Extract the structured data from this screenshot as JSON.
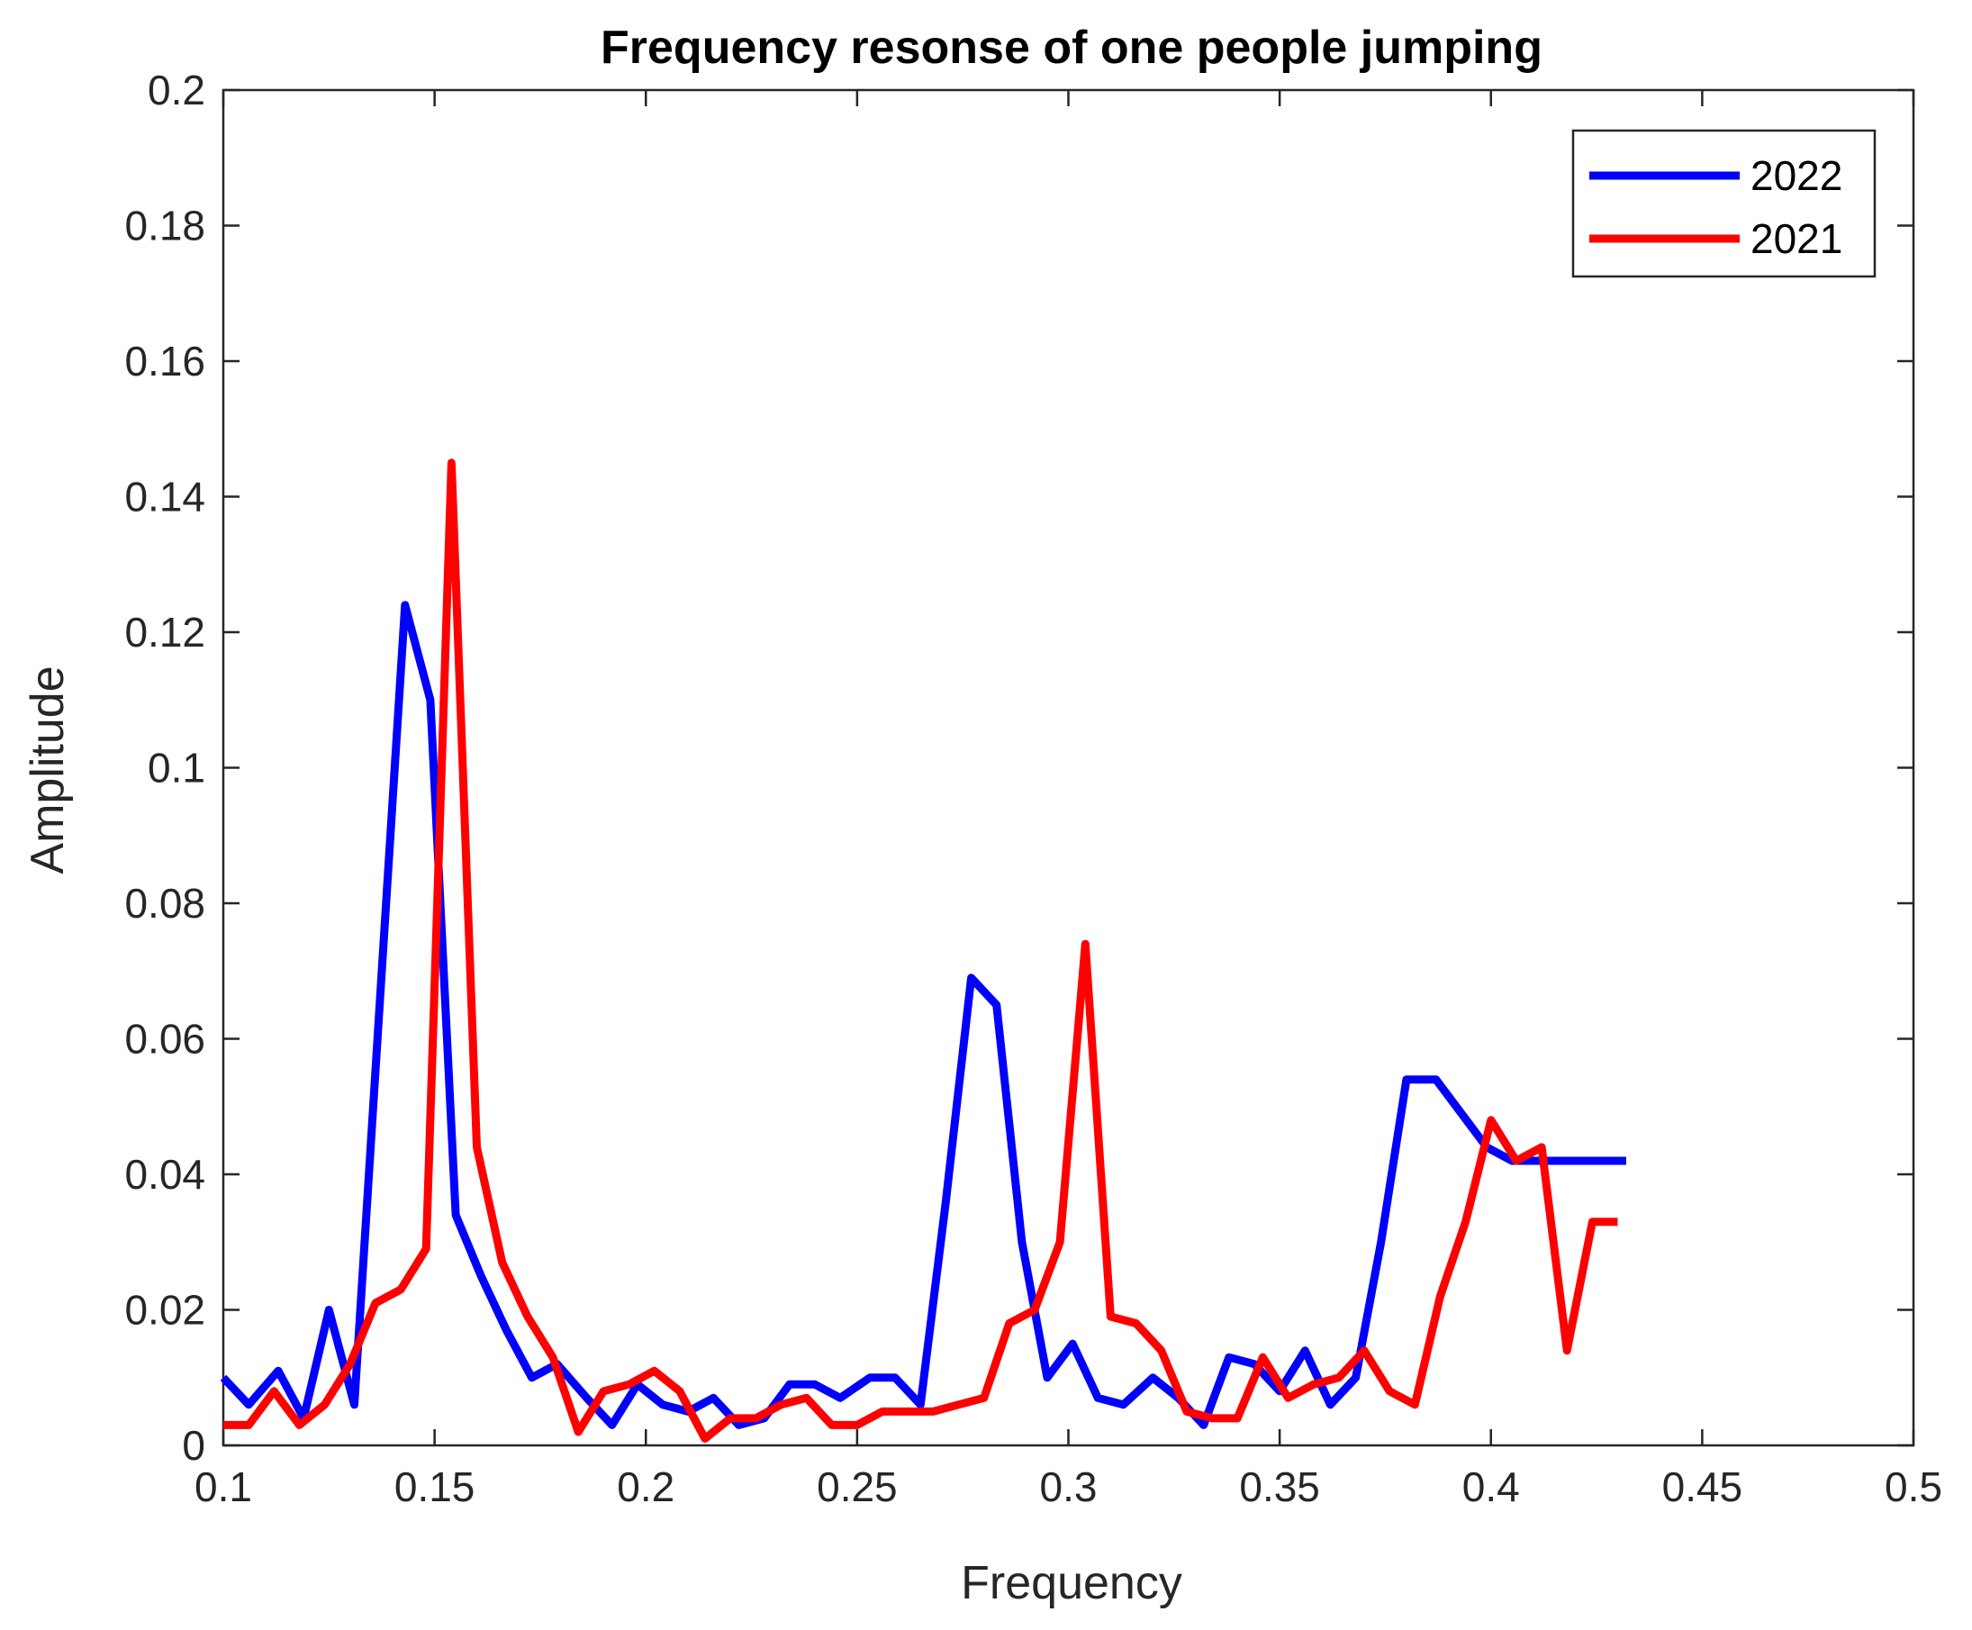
{
  "chart_data": {
    "type": "line",
    "title": "Frequency resonse of one people jumping",
    "xlabel": "Frequency",
    "ylabel": "Amplitude",
    "xlim": [
      0.1,
      0.5
    ],
    "ylim": [
      0,
      0.2
    ],
    "xticks": [
      0.1,
      0.15,
      0.2,
      0.25,
      0.3,
      0.35,
      0.4,
      0.45,
      0.5
    ],
    "xtick_labels": [
      "0.1",
      "0.15",
      "0.2",
      "0.25",
      "0.3",
      "0.35",
      "0.4",
      "0.45",
      "0.5"
    ],
    "yticks": [
      0,
      0.02,
      0.04,
      0.06,
      0.08,
      0.1,
      0.12,
      0.14,
      0.16,
      0.18,
      0.2
    ],
    "ytick_labels": [
      "0",
      "0.02",
      "0.04",
      "0.06",
      "0.08",
      "0.1",
      "0.12",
      "0.14",
      "0.16",
      "0.18",
      "0.2"
    ],
    "grid": false,
    "legend_position": "top-right",
    "series": [
      {
        "name": "2022",
        "color": "#0000ff",
        "x": [
          0.1,
          0.106,
          0.113,
          0.119,
          0.125,
          0.131,
          0.137,
          0.143,
          0.149,
          0.155,
          0.161,
          0.167,
          0.173,
          0.179,
          0.186,
          0.192,
          0.198,
          0.204,
          0.21,
          0.216,
          0.222,
          0.228,
          0.234,
          0.24,
          0.246,
          0.253,
          0.259,
          0.265,
          0.271,
          0.277,
          0.283,
          0.289,
          0.295,
          0.301,
          0.307,
          0.313,
          0.32,
          0.326,
          0.332,
          0.338,
          0.344,
          0.35,
          0.356,
          0.362,
          0.368,
          0.374,
          0.38,
          0.387,
          0.393,
          0.399,
          0.405,
          0.411,
          0.417,
          0.423,
          0.429,
          0.432
        ],
        "values": [
          0.01,
          0.006,
          0.011,
          0.004,
          0.02,
          0.006,
          0.065,
          0.124,
          0.11,
          0.034,
          0.025,
          0.017,
          0.01,
          0.012,
          0.007,
          0.003,
          0.009,
          0.006,
          0.005,
          0.007,
          0.003,
          0.004,
          0.009,
          0.009,
          0.007,
          0.01,
          0.01,
          0.006,
          0.036,
          0.069,
          0.065,
          0.03,
          0.01,
          0.015,
          0.007,
          0.006,
          0.01,
          0.007,
          0.003,
          0.013,
          0.012,
          0.008,
          0.014,
          0.006,
          0.01,
          0.03,
          0.054,
          0.054,
          0.049,
          0.044,
          0.042,
          0.042,
          0.042,
          0.042,
          0.042,
          0.042
        ]
      },
      {
        "name": "2021",
        "color": "#ff0000",
        "x": [
          0.1,
          0.106,
          0.112,
          0.118,
          0.124,
          0.13,
          0.136,
          0.142,
          0.148,
          0.154,
          0.16,
          0.166,
          0.172,
          0.178,
          0.184,
          0.19,
          0.196,
          0.202,
          0.208,
          0.214,
          0.22,
          0.226,
          0.232,
          0.238,
          0.244,
          0.25,
          0.256,
          0.262,
          0.268,
          0.274,
          0.28,
          0.286,
          0.292,
          0.298,
          0.304,
          0.31,
          0.316,
          0.322,
          0.328,
          0.334,
          0.34,
          0.346,
          0.352,
          0.358,
          0.364,
          0.37,
          0.376,
          0.382,
          0.388,
          0.394,
          0.4,
          0.406,
          0.412,
          0.418,
          0.424,
          0.43
        ],
        "values": [
          0.003,
          0.003,
          0.008,
          0.003,
          0.006,
          0.012,
          0.021,
          0.023,
          0.029,
          0.145,
          0.044,
          0.027,
          0.019,
          0.013,
          0.002,
          0.008,
          0.009,
          0.011,
          0.008,
          0.001,
          0.004,
          0.004,
          0.006,
          0.007,
          0.003,
          0.003,
          0.005,
          0.005,
          0.005,
          0.006,
          0.007,
          0.018,
          0.02,
          0.03,
          0.074,
          0.019,
          0.018,
          0.014,
          0.005,
          0.004,
          0.004,
          0.013,
          0.007,
          0.009,
          0.01,
          0.014,
          0.008,
          0.006,
          0.022,
          0.033,
          0.048,
          0.042,
          0.044,
          0.014,
          0.033,
          0.033
        ]
      }
    ]
  }
}
